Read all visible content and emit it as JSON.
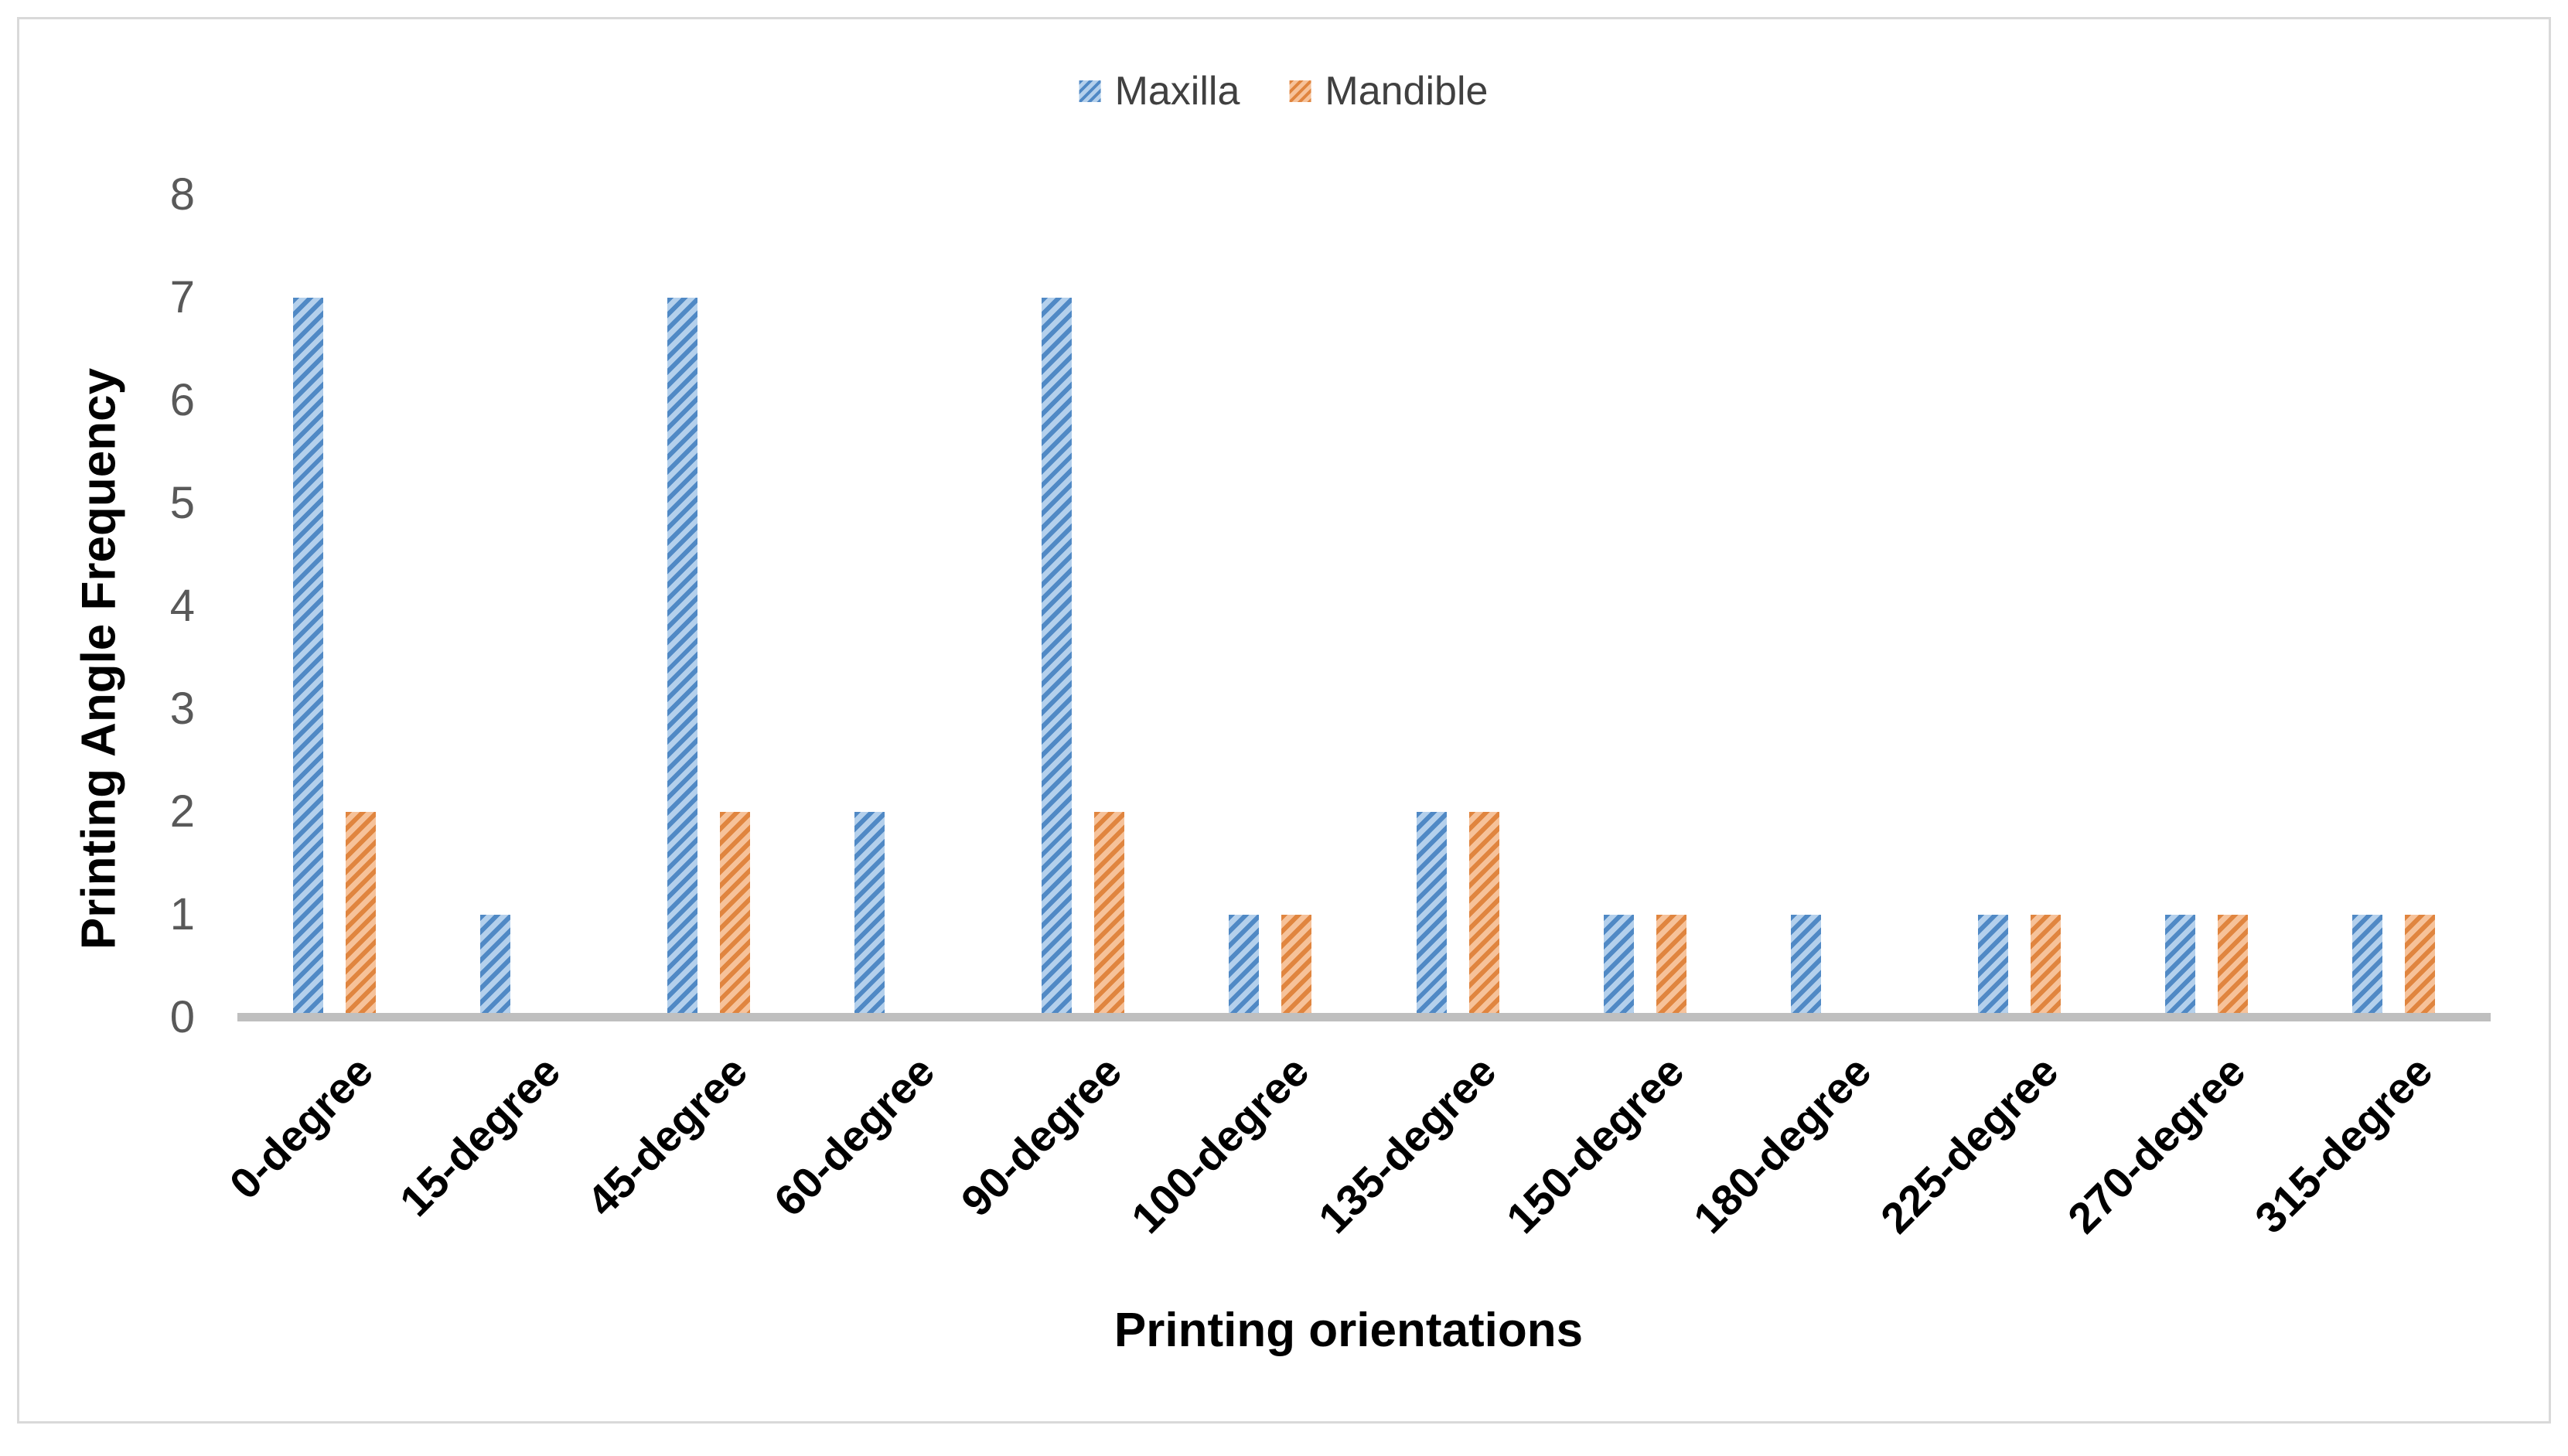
{
  "chart_data": {
    "type": "bar",
    "title": "",
    "categories": [
      "0-degree",
      "15-degree",
      "45-degree",
      "60-degree",
      "90-degree",
      "100-degree",
      "135-degree",
      "150-degree",
      "180-degree",
      "225-degree",
      "270-degree",
      "315-degree"
    ],
    "series": [
      {
        "name": "Maxilla",
        "values": [
          7,
          1,
          7,
          2,
          7,
          1,
          2,
          1,
          1,
          1,
          1,
          1
        ],
        "fill": "#B4D0EC",
        "stripe": "#5089C5"
      },
      {
        "name": "Mandible",
        "values": [
          2,
          0,
          2,
          0,
          2,
          1,
          2,
          1,
          0,
          1,
          1,
          1
        ],
        "fill": "#F6C29A",
        "stripe": "#E0853F"
      }
    ],
    "xlabel": "Printing orientations",
    "ylabel": "Printing Angle Frequency",
    "y_ticks": [
      0,
      1,
      2,
      3,
      4,
      5,
      6,
      7,
      8
    ],
    "ylim": [
      0,
      8
    ],
    "grid": false,
    "legend_position": "top-center",
    "hatch": "upward-diagonal",
    "colors": {
      "axis_line": "#BFBFBF",
      "tick_label": "#595959",
      "axis_title": "#000000",
      "category_label": "#000000",
      "legend_text": "#404040",
      "frame_border": "#D9D9D9",
      "background": "#FFFFFF"
    }
  }
}
